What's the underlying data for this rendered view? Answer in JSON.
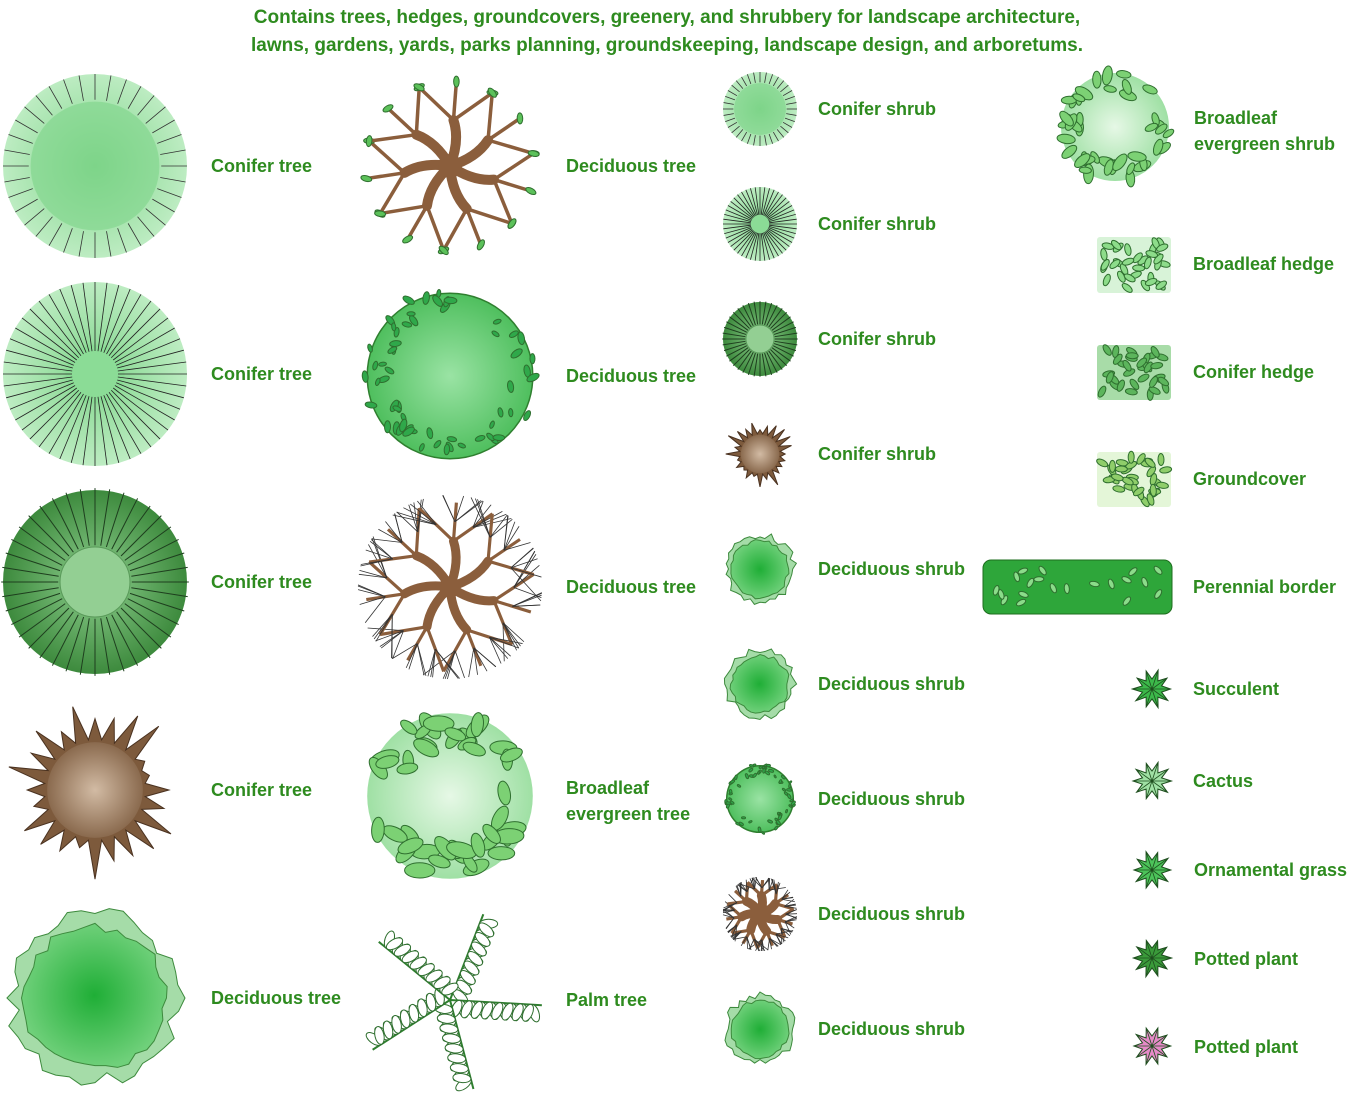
{
  "header": {
    "lines": [
      "Contains trees, hedges, groundcovers, greenery, and shrubbery for landscape architecture,",
      "lawns, gardens, yards, parks planning, groundskeeping, landscape design, and arboretums."
    ]
  },
  "items": [
    {
      "label": "Conifer tree"
    },
    {
      "label": "Conifer tree"
    },
    {
      "label": "Conifer tree"
    },
    {
      "label": "Conifer tree"
    },
    {
      "label": "Deciduous tree"
    },
    {
      "label": "Deciduous tree"
    },
    {
      "label": "Deciduous tree"
    },
    {
      "label": "Deciduous tree"
    },
    {
      "label": "Broadleaf evergreen tree"
    },
    {
      "label": "Palm tree"
    },
    {
      "label": "Conifer shrub"
    },
    {
      "label": "Conifer shrub"
    },
    {
      "label": "Conifer shrub"
    },
    {
      "label": "Conifer shrub"
    },
    {
      "label": "Deciduous shrub"
    },
    {
      "label": "Deciduous shrub"
    },
    {
      "label": "Deciduous shrub"
    },
    {
      "label": "Deciduous shrub"
    },
    {
      "label": "Deciduous shrub"
    },
    {
      "label": "Broadleaf evergreen shrub"
    },
    {
      "label": "Broadleaf hedge"
    },
    {
      "label": "Conifer hedge"
    },
    {
      "label": "Groundcover"
    },
    {
      "label": "Perennial border"
    },
    {
      "label": "Succulent"
    },
    {
      "label": "Cactus"
    },
    {
      "label": "Ornamental grass"
    },
    {
      "label": "Potted plant"
    },
    {
      "label": "Potted plant"
    }
  ]
}
